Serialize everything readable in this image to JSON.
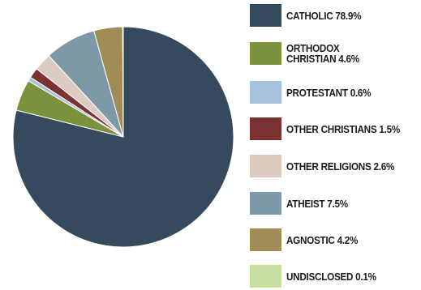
{
  "chart_data": {
    "type": "pie",
    "slices": [
      {
        "label": "CATHOLIC  78.9%",
        "value": 78.9,
        "color": "#354a5c"
      },
      {
        "label": "ORTHODOX\nCHRISTIAN  4.6%",
        "value": 4.6,
        "color": "#7b913b"
      },
      {
        "label": "PROTESTANT  0.6%",
        "value": 0.6,
        "color": "#a7c2dd"
      },
      {
        "label": "OTHER CHRISTIANS  1.5%",
        "value": 1.5,
        "color": "#7c3232"
      },
      {
        "label": "OTHER RELIGIONS  2.6%",
        "value": 2.6,
        "color": "#dccbc0"
      },
      {
        "label": "ATHEIST  7.5%",
        "value": 7.5,
        "color": "#7d99a8"
      },
      {
        "label": "AGNOSTIC  4.2%",
        "value": 4.2,
        "color": "#9f8d55"
      },
      {
        "label": "UNDISCLOSED  0.1%",
        "value": 0.1,
        "color": "#c6df9f"
      }
    ],
    "legend_placement": "right",
    "start_angle_deg": 0,
    "direction": "clockwise"
  }
}
